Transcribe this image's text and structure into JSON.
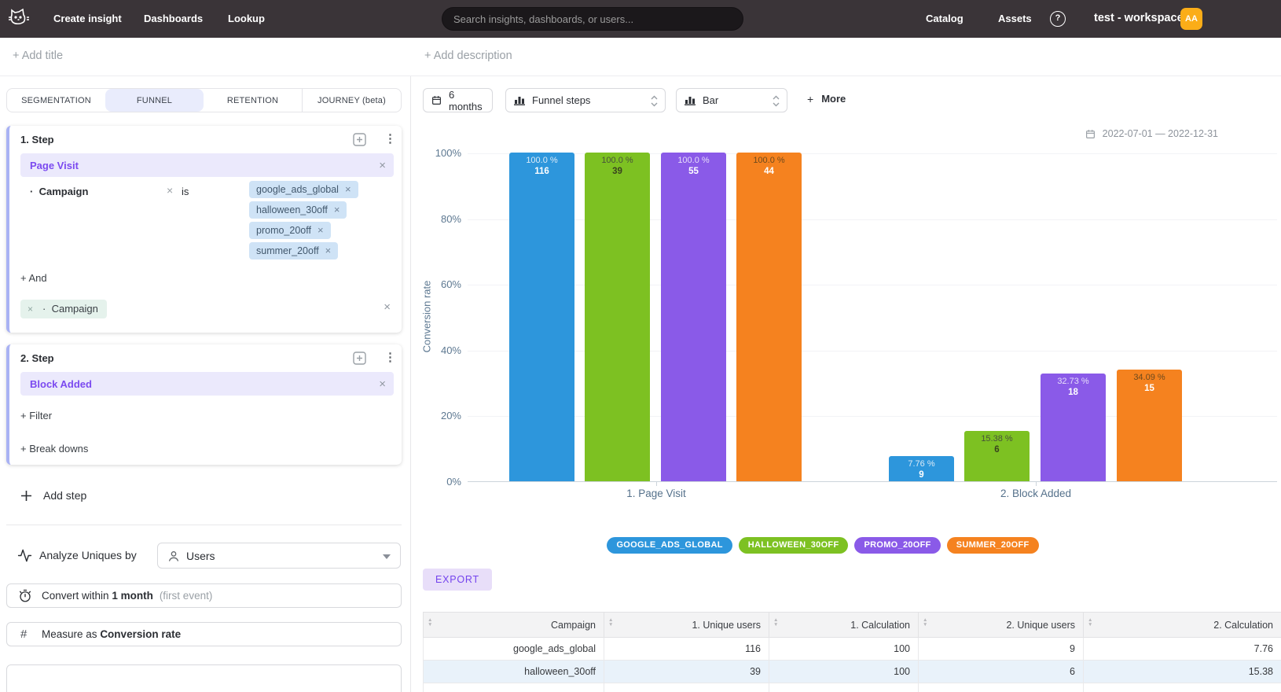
{
  "topnav": {
    "items": [
      "Create insight",
      "Dashboards",
      "Lookup"
    ],
    "search_placeholder": "Search insights, dashboards, or users...",
    "right_items": [
      "Catalog",
      "Assets"
    ],
    "help": "?",
    "workspace": "test - workspace",
    "avatar_initials": "AA"
  },
  "titlebar": {
    "add_title": "+ Add title",
    "add_description": "+ Add description"
  },
  "tabs": {
    "items": [
      "SEGMENTATION",
      "FUNNEL",
      "RETENTION",
      "JOURNEY (beta)"
    ],
    "active": "FUNNEL"
  },
  "steps": [
    {
      "header": "1.  Step",
      "event": "Page Visit",
      "filter": {
        "bullet": "·",
        "property": "Campaign",
        "operator": "is",
        "values": [
          "google_ads_global",
          "halloween_30off",
          "promo_20off",
          "summer_20off"
        ]
      },
      "and_label": "+ And",
      "breakdown": {
        "bullet": "·",
        "property": "Campaign"
      }
    },
    {
      "header": "2.  Step",
      "event": "Block Added",
      "filter_label": "+ Filter",
      "breakdowns_label": "+ Break downs"
    }
  ],
  "controls": {
    "add_step": "Add step",
    "analyze_label": "Analyze Uniques by",
    "analyze_value": "Users",
    "convert": {
      "prefix": "Convert within",
      "value": "1 month",
      "note": "(first event)"
    },
    "measure": {
      "prefix": "Measure as",
      "value": "Conversion rate",
      "hash": "#"
    }
  },
  "chart_toolbar": {
    "range": "6 months",
    "view": "Funnel steps",
    "chart_type": "Bar",
    "more_plus": "+",
    "more": "More"
  },
  "date_range": "2022-07-01 — 2022-12-31",
  "chart_data": {
    "type": "bar",
    "title": "",
    "ylabel": "Conversion rate",
    "ylim": [
      0,
      100
    ],
    "yticks": [
      "100%",
      "80%",
      "60%",
      "40%",
      "20%",
      "0%"
    ],
    "grid": true,
    "legend_position": "bottom",
    "categories": [
      "1. Page Visit",
      "2. Block Added"
    ],
    "series": [
      {
        "name": "GOOGLE_ADS_GLOBAL",
        "color": "#2d96dc",
        "values": [
          100.0,
          7.76
        ],
        "counts": [
          116,
          9
        ],
        "pct_labels": [
          "100.0 %",
          "7.76 %"
        ],
        "pct_color": "#dcebf7",
        "count_color": "#ffffff"
      },
      {
        "name": "HALLOWEEN_30OFF",
        "color": "#7dc122",
        "values": [
          100.0,
          15.38
        ],
        "counts": [
          39,
          6
        ],
        "pct_labels": [
          "100.0 %",
          "15.38 %"
        ],
        "pct_color": "#47523a",
        "count_color": "#39431f"
      },
      {
        "name": "PROMO_20OFF",
        "color": "#8a5ae8",
        "values": [
          100.0,
          32.73
        ],
        "counts": [
          55,
          18
        ],
        "pct_labels": [
          "100.0 %",
          "32.73 %"
        ],
        "pct_color": "#e6ddfa",
        "count_color": "#ffffff"
      },
      {
        "name": "SUMMER_20OFF",
        "color": "#f5821f",
        "values": [
          100.0,
          34.09
        ],
        "counts": [
          44,
          15
        ],
        "pct_labels": [
          "100.0 %",
          "34.09 %"
        ],
        "pct_color": "#6e4a1d",
        "count_color": "#ffffff"
      }
    ]
  },
  "export_label": "EXPORT",
  "table": {
    "columns": [
      "Campaign",
      "1. Unique users",
      "1. Calculation",
      "2. Unique users",
      "2. Calculation"
    ],
    "rows": [
      [
        "google_ads_global",
        "116",
        "100",
        "9",
        "7.76"
      ],
      [
        "halloween_30off",
        "39",
        "100",
        "6",
        "15.38"
      ]
    ]
  }
}
